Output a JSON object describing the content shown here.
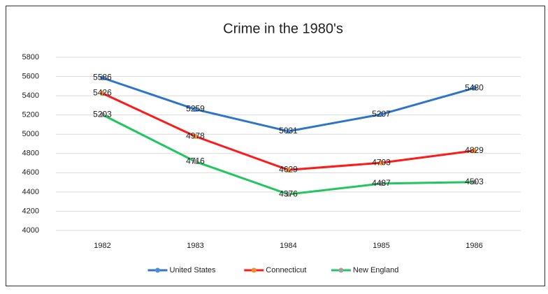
{
  "chart_data": {
    "type": "line",
    "title": "Crime in the 1980's",
    "categories": [
      "1982",
      "1983",
      "1984",
      "1985",
      "1986"
    ],
    "series": [
      {
        "name": "United States",
        "color": "#2e75c8",
        "marker_color": "#4a90d9",
        "values": [
          5586,
          5259,
          5031,
          5207,
          5480
        ]
      },
      {
        "name": "Connecticut",
        "color": "#ff1a1a",
        "marker_color": "#f28c28",
        "values": [
          5426,
          4978,
          4629,
          4703,
          4829
        ]
      },
      {
        "name": "New England",
        "color": "#22c55e",
        "marker_color": "#a0a0a0",
        "values": [
          5203,
          4716,
          4376,
          4487,
          4503
        ]
      }
    ],
    "ylim": [
      4000,
      5800
    ],
    "yticks": [
      4000,
      4200,
      4400,
      4600,
      4800,
      5000,
      5200,
      5400,
      5600,
      5800
    ],
    "grid": true,
    "legend": "bottom",
    "data_labels": true
  }
}
